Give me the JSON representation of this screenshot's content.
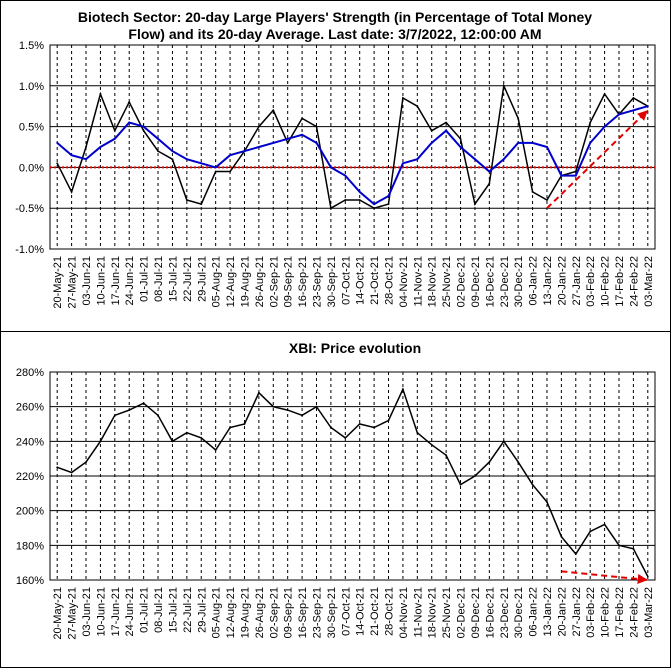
{
  "chart_data": [
    {
      "type": "line",
      "title_line1": "Biotech Sector: 20-day Large Players' Strength (in Percentage of Total Money",
      "title_line2": "Flow) and its 20-day Average. Last date: 3/7/2022, 12:00:00 AM",
      "ylim": [
        -1.0,
        1.5
      ],
      "yticks": [
        "1.5%",
        "1.0%",
        "0.5%",
        "0.0%",
        "-0.5%",
        "-1.0%"
      ],
      "grid": true,
      "zero_line": true,
      "categories": [
        "20-May-21",
        "27-May-21",
        "03-Jun-21",
        "10-Jun-21",
        "17-Jun-21",
        "24-Jun-21",
        "01-Jul-21",
        "08-Jul-21",
        "15-Jul-21",
        "22-Jul-21",
        "29-Jul-21",
        "05-Aug-21",
        "12-Aug-21",
        "19-Aug-21",
        "26-Aug-21",
        "02-Sep-21",
        "09-Sep-21",
        "16-Sep-21",
        "23-Sep-21",
        "30-Sep-21",
        "07-Oct-21",
        "14-Oct-21",
        "21-Oct-21",
        "28-Oct-21",
        "04-Nov-21",
        "11-Nov-21",
        "18-Nov-21",
        "25-Nov-21",
        "02-Dec-21",
        "09-Dec-21",
        "16-Dec-21",
        "23-Dec-21",
        "30-Dec-21",
        "06-Jan-22",
        "13-Jan-22",
        "20-Jan-22",
        "27-Jan-22",
        "03-Feb-22",
        "10-Feb-22",
        "17-Feb-22",
        "24-Feb-22",
        "03-Mar-22"
      ],
      "series": [
        {
          "color": "#000000",
          "values": [
            0.05,
            -0.3,
            0.25,
            0.9,
            0.45,
            0.8,
            0.45,
            0.2,
            0.1,
            -0.4,
            -0.45,
            -0.05,
            -0.05,
            0.2,
            0.5,
            0.7,
            0.3,
            0.6,
            0.5,
            -0.5,
            -0.4,
            -0.4,
            -0.5,
            -0.45,
            0.85,
            0.75,
            0.45,
            0.55,
            0.35,
            -0.45,
            -0.2,
            1.0,
            0.6,
            -0.3,
            -0.4,
            -0.1,
            -0.05,
            0.55,
            0.9,
            0.65,
            0.85,
            0.75
          ]
        },
        {
          "color": "#0000cc",
          "values": [
            0.3,
            0.15,
            0.1,
            0.25,
            0.35,
            0.55,
            0.5,
            0.35,
            0.2,
            0.1,
            0.05,
            0.0,
            0.15,
            0.2,
            0.25,
            0.3,
            0.35,
            0.4,
            0.3,
            0.0,
            -0.1,
            -0.3,
            -0.45,
            -0.35,
            0.05,
            0.1,
            0.3,
            0.45,
            0.25,
            0.1,
            -0.05,
            0.1,
            0.3,
            0.3,
            0.25,
            -0.1,
            -0.1,
            0.3,
            0.5,
            0.65,
            0.7,
            0.75
          ]
        }
      ],
      "trend_arrow": {
        "color": "#e00000",
        "from": [
          "13-Jan-22",
          -0.5
        ],
        "to": [
          "03-Mar-22",
          0.7
        ]
      }
    },
    {
      "type": "line",
      "title": "XBI: Price evolution",
      "ylim": [
        160,
        280
      ],
      "yticks": [
        "280%",
        "260%",
        "240%",
        "220%",
        "200%",
        "180%",
        "160%"
      ],
      "grid": true,
      "categories": [
        "20-May-21",
        "27-May-21",
        "03-Jun-21",
        "10-Jun-21",
        "17-Jun-21",
        "24-Jun-21",
        "01-Jul-21",
        "08-Jul-21",
        "15-Jul-21",
        "22-Jul-21",
        "29-Jul-21",
        "05-Aug-21",
        "12-Aug-21",
        "19-Aug-21",
        "26-Aug-21",
        "02-Sep-21",
        "09-Sep-21",
        "16-Sep-21",
        "23-Sep-21",
        "30-Sep-21",
        "07-Oct-21",
        "14-Oct-21",
        "21-Oct-21",
        "28-Oct-21",
        "04-Nov-21",
        "11-Nov-21",
        "18-Nov-21",
        "25-Nov-21",
        "02-Dec-21",
        "09-Dec-21",
        "16-Dec-21",
        "23-Dec-21",
        "30-Dec-21",
        "06-Jan-22",
        "13-Jan-22",
        "20-Jan-22",
        "27-Jan-22",
        "03-Feb-22",
        "10-Feb-22",
        "17-Feb-22",
        "24-Feb-22",
        "03-Mar-22"
      ],
      "series": [
        {
          "color": "#000000",
          "values": [
            225,
            222,
            228,
            240,
            255,
            258,
            262,
            255,
            240,
            245,
            242,
            235,
            248,
            250,
            268,
            260,
            258,
            255,
            260,
            248,
            242,
            250,
            248,
            252,
            270,
            245,
            238,
            232,
            215,
            220,
            228,
            240,
            228,
            215,
            205,
            185,
            175,
            188,
            192,
            180,
            178,
            162
          ]
        }
      ],
      "trend_arrow": {
        "color": "#e00000",
        "from": [
          "20-Jan-22",
          165
        ],
        "to": [
          "03-Mar-22",
          160
        ]
      }
    }
  ]
}
